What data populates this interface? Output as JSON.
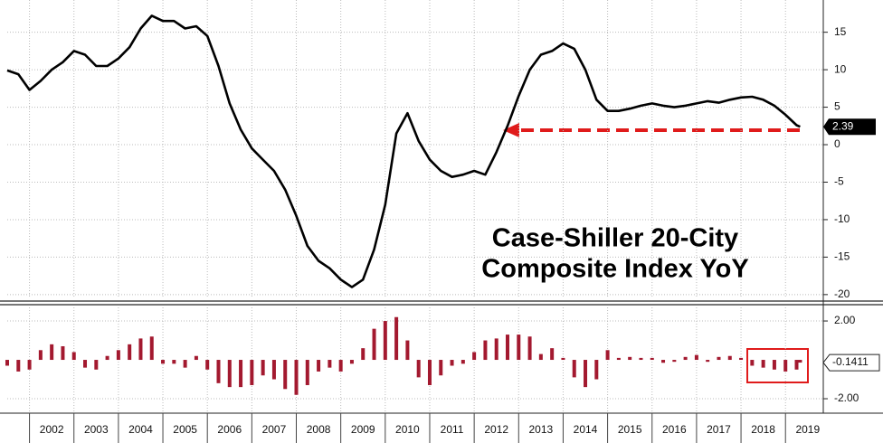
{
  "chart_data": [
    {
      "type": "line",
      "color": "#000000",
      "annotations": [
        "Case-Shiller 20-City",
        "Composite Index YoY"
      ],
      "x": [
        2001.5,
        2001.75,
        2002,
        2002.25,
        2002.5,
        2002.75,
        2003,
        2003.25,
        2003.5,
        2003.75,
        2004,
        2004.25,
        2004.5,
        2004.75,
        2005,
        2005.25,
        2005.5,
        2005.75,
        2006,
        2006.25,
        2006.5,
        2006.75,
        2007,
        2007.25,
        2007.5,
        2007.75,
        2008,
        2008.25,
        2008.5,
        2008.75,
        2009,
        2009.25,
        2009.5,
        2009.75,
        2010,
        2010.25,
        2010.5,
        2010.75,
        2011,
        2011.25,
        2011.5,
        2011.75,
        2012,
        2012.25,
        2012.5,
        2012.75,
        2013,
        2013.25,
        2013.5,
        2013.75,
        2014,
        2014.25,
        2014.5,
        2014.75,
        2015,
        2015.25,
        2015.5,
        2015.75,
        2016,
        2016.25,
        2016.5,
        2016.75,
        2017,
        2017.25,
        2017.5,
        2017.75,
        2018,
        2018.25,
        2018.5,
        2018.75,
        2019,
        2019.25,
        2019.33
      ],
      "values": [
        9.9,
        9.4,
        7.3,
        8.5,
        10,
        11,
        12.5,
        12,
        10.5,
        10.5,
        11.5,
        13,
        15.5,
        17.2,
        16.5,
        16.5,
        15.5,
        15.8,
        14.5,
        10.5,
        5.5,
        2,
        -0.5,
        -2,
        -3.5,
        -6,
        -9.5,
        -13.5,
        -15.5,
        -16.5,
        -18,
        -19,
        -18,
        -14,
        -8,
        1.5,
        4.2,
        0.5,
        -2,
        -3.5,
        -4.3,
        -4,
        -3.5,
        -4,
        -1,
        2.5,
        6.5,
        10,
        12,
        12.5,
        13.5,
        12.8,
        10,
        6,
        4.5,
        4.5,
        4.8,
        5.2,
        5.5,
        5.2,
        5,
        5.2,
        5.5,
        5.8,
        5.6,
        6,
        6.3,
        6.4,
        6,
        5.2,
        4,
        2.6,
        2.39
      ],
      "xlim": [
        2001.5,
        2019.85
      ],
      "xticks": [
        2002,
        2003,
        2004,
        2005,
        2006,
        2007,
        2008,
        2009,
        2010,
        2011,
        2012,
        2013,
        2014,
        2015,
        2016,
        2017,
        2018,
        2019
      ],
      "ylim": [
        -20.5,
        19.3
      ],
      "yticks": [
        15,
        10,
        5,
        0,
        -5,
        -10,
        -15,
        -20
      ],
      "grid": true
    },
    {
      "type": "bar",
      "color": "#a3192f",
      "x": [
        2001.5,
        2001.75,
        2002,
        2002.25,
        2002.5,
        2002.75,
        2003,
        2003.25,
        2003.5,
        2003.75,
        2004,
        2004.25,
        2004.5,
        2004.75,
        2005,
        2005.25,
        2005.5,
        2005.75,
        2006,
        2006.25,
        2006.5,
        2006.75,
        2007,
        2007.25,
        2007.5,
        2007.75,
        2008,
        2008.25,
        2008.5,
        2008.75,
        2009,
        2009.25,
        2009.5,
        2009.75,
        2010,
        2010.25,
        2010.5,
        2010.75,
        2011,
        2011.25,
        2011.5,
        2011.75,
        2012,
        2012.25,
        2012.5,
        2012.75,
        2013,
        2013.25,
        2013.5,
        2013.75,
        2014,
        2014.25,
        2014.5,
        2014.75,
        2015,
        2015.25,
        2015.5,
        2015.75,
        2016,
        2016.25,
        2016.5,
        2016.75,
        2017,
        2017.25,
        2017.5,
        2017.75,
        2018,
        2018.25,
        2018.5,
        2018.75,
        2019,
        2019.25,
        2019.33
      ],
      "values": [
        -0.3,
        -0.6,
        -0.5,
        0.5,
        0.8,
        0.7,
        0.4,
        -0.4,
        -0.5,
        0.2,
        0.5,
        0.8,
        1.1,
        1.2,
        -0.2,
        -0.2,
        -0.4,
        0.2,
        -0.5,
        -1.2,
        -1.4,
        -1.4,
        -1.3,
        -0.8,
        -1,
        -1.5,
        -1.8,
        -1.3,
        -0.6,
        -0.4,
        -0.6,
        -0.2,
        0.6,
        1.6,
        2,
        2.2,
        1,
        -0.9,
        -1.3,
        -0.8,
        -0.3,
        -0.2,
        0.4,
        1,
        1.1,
        1.3,
        1.3,
        1.2,
        0.3,
        0.6,
        0.1,
        -0.9,
        -1.4,
        -1,
        0.5,
        0.1,
        0.15,
        0.1,
        0.1,
        -0.15,
        -0.1,
        0.15,
        0.25,
        -0.1,
        0.15,
        0.2,
        0.1,
        -0.3,
        -0.4,
        -0.5,
        -0.6,
        -0.5,
        -0.1411
      ],
      "xlim": [
        2001.5,
        2019.85
      ],
      "xticks": [
        2002,
        2003,
        2004,
        2005,
        2006,
        2007,
        2008,
        2009,
        2010,
        2011,
        2012,
        2013,
        2014,
        2015,
        2016,
        2017,
        2018,
        2019
      ],
      "ylim": [
        -2.65,
        2.7
      ],
      "yticks": [
        {
          "value": 2,
          "label": "2.00"
        },
        {
          "value": -2,
          "label": "-2.00"
        }
      ],
      "grid": true
    }
  ]
}
